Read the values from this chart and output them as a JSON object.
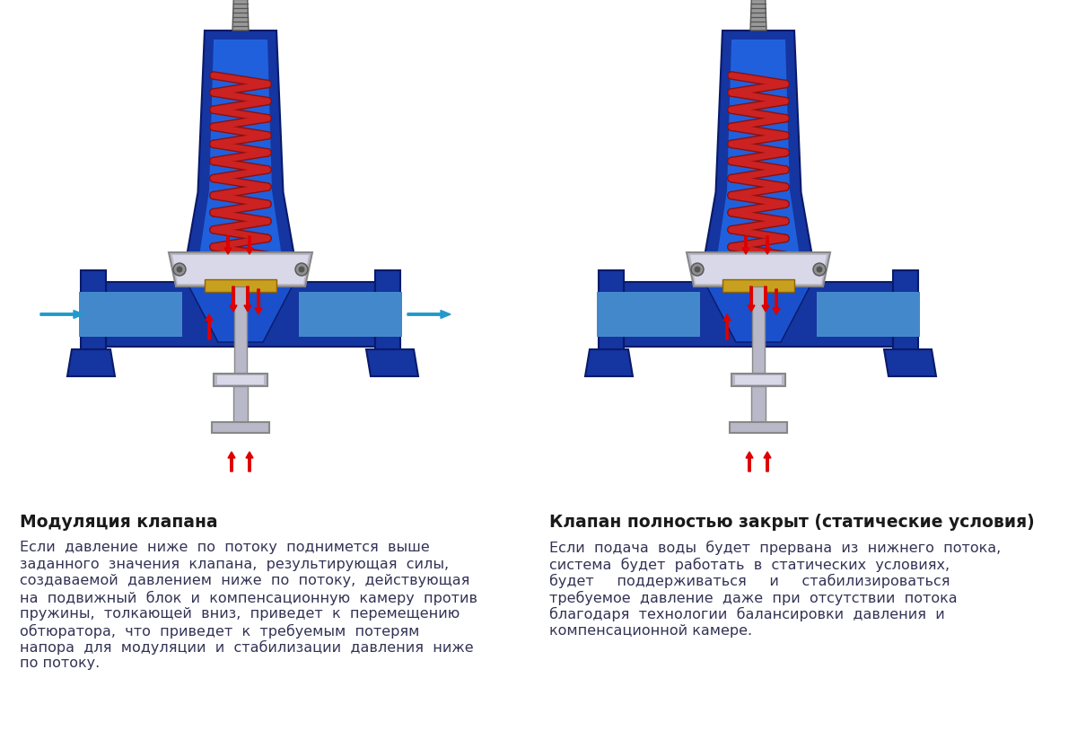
{
  "bg_color": "#ffffff",
  "title1": "Модуляция клапана",
  "title2": "Клапан полностью закрыт (статические условия)",
  "body1_lines": [
    "Если  давление  ниже  по  потоку  поднимется  выше",
    "заданного  значения  клапана,  результирующая  силы,",
    "создаваемой  давлением  ниже  по  потоку,  действующая",
    "на  подвижный  блок  и  компенсационную  камеру  против",
    "пружины,  толкающей  вниз,  приведет  к  перемещению",
    "обтюратора,  что  приведет  к  требуемым  потерям",
    "напора  для  модуляции  и  стабилизации  давления  ниже",
    "по потоку."
  ],
  "body2_lines": [
    "Если  подача  воды  будет  прервана  из  нижнего  потока,",
    "система  будет  работать  в  статических  условиях,",
    "будет     поддерживаться     и     стабилизироваться",
    "требуемое  давление  даже  при  отсутствии  потока",
    "благодаря  технологии  балансировки  давления  и",
    "компенсационной камере."
  ],
  "title_color": "#1a1a1a",
  "body_color": "#333355",
  "title_fontsize": 13.5,
  "body_fontsize": 11.5,
  "blue_dark": "#1535a0",
  "blue_mid": "#1a50cc",
  "blue_light": "#2060dd",
  "red_arrow": "#dd0000",
  "cyan_arrow": "#2299cc",
  "silver": "#b8b8c8",
  "silver_light": "#d8d8e8",
  "gold": "#c8a020",
  "gray_bolt": "#909090",
  "spring_color": "#cc2222",
  "spring_shadow": "#881111"
}
